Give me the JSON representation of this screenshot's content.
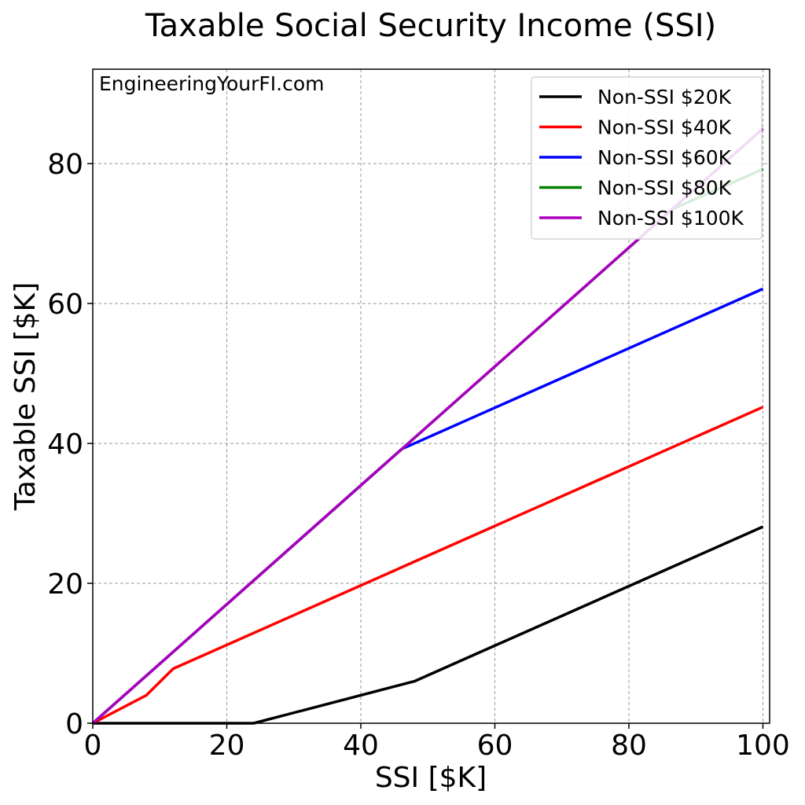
{
  "chart_data": {
    "type": "line",
    "title": "Taxable Social Security Income (SSI)",
    "xlabel": "SSI [$K]",
    "ylabel": "Taxable SSI [$K]",
    "annotation": "EngineeringYourFI.com",
    "xlim": [
      0,
      101
    ],
    "ylim": [
      0,
      93.5
    ],
    "xticks": [
      0,
      20,
      40,
      60,
      80,
      100
    ],
    "yticks": [
      0,
      20,
      40,
      60,
      80
    ],
    "grid": true,
    "legend_position": "top-right",
    "series": [
      {
        "name": "Non-SSI $20K",
        "color": "#000000",
        "x": [
          0,
          24,
          48,
          100
        ],
        "y": [
          0,
          0,
          6,
          28.1
        ]
      },
      {
        "name": "Non-SSI $40K",
        "color": "#ff0000",
        "x": [
          0,
          8,
          12,
          100
        ],
        "y": [
          0,
          4,
          7.8,
          45.2
        ]
      },
      {
        "name": "Non-SSI $60K",
        "color": "#0000ff",
        "x": [
          0,
          46.1,
          100
        ],
        "y": [
          0,
          39.2,
          62.1
        ]
      },
      {
        "name": "Non-SSI $80K",
        "color": "#008000",
        "x": [
          0,
          86.5,
          100
        ],
        "y": [
          0,
          73.5,
          79.2
        ]
      },
      {
        "name": "Non-SSI $100K",
        "color": "#aa00c0",
        "x": [
          0,
          100
        ],
        "y": [
          0,
          85
        ]
      }
    ]
  }
}
